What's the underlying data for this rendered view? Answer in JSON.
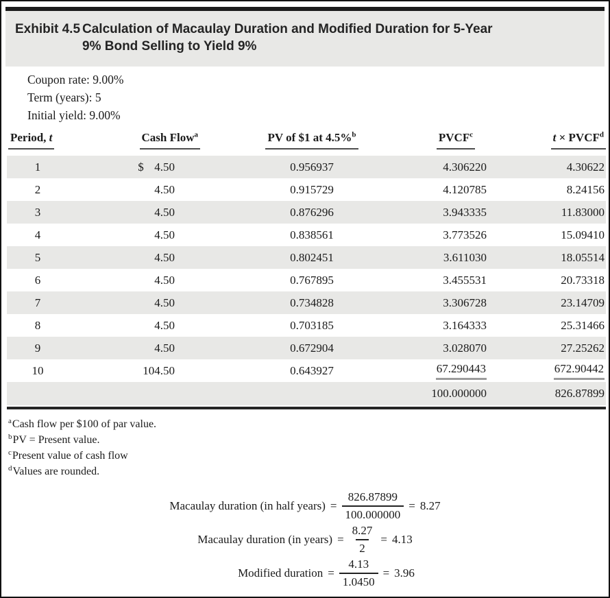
{
  "exhibit": {
    "label": "Exhibit 4.5",
    "title_line1": "Calculation of Macaulay Duration and Modified Duration for 5-Year",
    "title_line2": "9% Bond Selling to Yield 9%"
  },
  "parameters": {
    "coupon_rate": "Coupon rate: 9.00%",
    "term": "Term (years): 5",
    "initial_yield": "Initial yield: 9.00%"
  },
  "table": {
    "headers": {
      "period": {
        "pre": "Period, ",
        "it": "t",
        "sup": ""
      },
      "cash_flow": {
        "pre": "Cash Flow",
        "sup": "a"
      },
      "pv": {
        "pre": "PV of $1 at 4.5%",
        "sup": "b"
      },
      "pvcf": {
        "pre": "PVCF",
        "sup": "c"
      },
      "t_pvcf": {
        "it": "t",
        "post": " × PVCF",
        "sup": "d"
      }
    },
    "rows": [
      {
        "period": "1",
        "sign": "$",
        "cash_flow": "4.50",
        "pv": "0.956937",
        "pvcf": "4.306220",
        "t_pvcf": "4.30622"
      },
      {
        "period": "2",
        "sign": "",
        "cash_flow": "4.50",
        "pv": "0.915729",
        "pvcf": "4.120785",
        "t_pvcf": "8.24156"
      },
      {
        "period": "3",
        "sign": "",
        "cash_flow": "4.50",
        "pv": "0.876296",
        "pvcf": "3.943335",
        "t_pvcf": "11.83000"
      },
      {
        "period": "4",
        "sign": "",
        "cash_flow": "4.50",
        "pv": "0.838561",
        "pvcf": "3.773526",
        "t_pvcf": "15.09410"
      },
      {
        "period": "5",
        "sign": "",
        "cash_flow": "4.50",
        "pv": "0.802451",
        "pvcf": "3.611030",
        "t_pvcf": "18.05514"
      },
      {
        "period": "6",
        "sign": "",
        "cash_flow": "4.50",
        "pv": "0.767895",
        "pvcf": "3.455531",
        "t_pvcf": "20.73318"
      },
      {
        "period": "7",
        "sign": "",
        "cash_flow": "4.50",
        "pv": "0.734828",
        "pvcf": "3.306728",
        "t_pvcf": "23.14709"
      },
      {
        "period": "8",
        "sign": "",
        "cash_flow": "4.50",
        "pv": "0.703185",
        "pvcf": "3.164333",
        "t_pvcf": "25.31466"
      },
      {
        "period": "9",
        "sign": "",
        "cash_flow": "4.50",
        "pv": "0.672904",
        "pvcf": "3.028070",
        "t_pvcf": "27.25262"
      },
      {
        "period": "10",
        "sign": "",
        "cash_flow": "104.50",
        "pv": "0.643927",
        "pvcf": "67.290443",
        "t_pvcf": "672.90442"
      }
    ],
    "totals": {
      "pvcf": "100.000000",
      "t_pvcf": "826.87899"
    }
  },
  "footnotes": [
    {
      "sup": "a",
      "text": "Cash flow per $100 of par value."
    },
    {
      "sup": "b",
      "text": "PV = Present value."
    },
    {
      "sup": "c",
      "text": "Present value of cash flow"
    },
    {
      "sup": "d",
      "text": "Values are rounded."
    }
  ],
  "formulas": {
    "equals": "=",
    "items": [
      {
        "label": "Macaulay duration (in half years)",
        "num": "826.87899",
        "den": "100.000000",
        "result": "8.27"
      },
      {
        "label": "Macaulay duration (in years)",
        "num": "8.27",
        "den": "2",
        "result": "4.13"
      },
      {
        "label": "Modified duration",
        "num": "4.13",
        "den": "1.0450",
        "result": "3.96"
      }
    ]
  },
  "colors": {
    "band_gray": "#e8e8e6",
    "stripe_gray": "#e8e8e6",
    "dark_rule": "#1c1c1c",
    "table_bottom_rule": "#262626",
    "header_underline": "#4d4d4d",
    "pre_total_rule": "#9b9b9b",
    "text": "#1a1a1a"
  }
}
